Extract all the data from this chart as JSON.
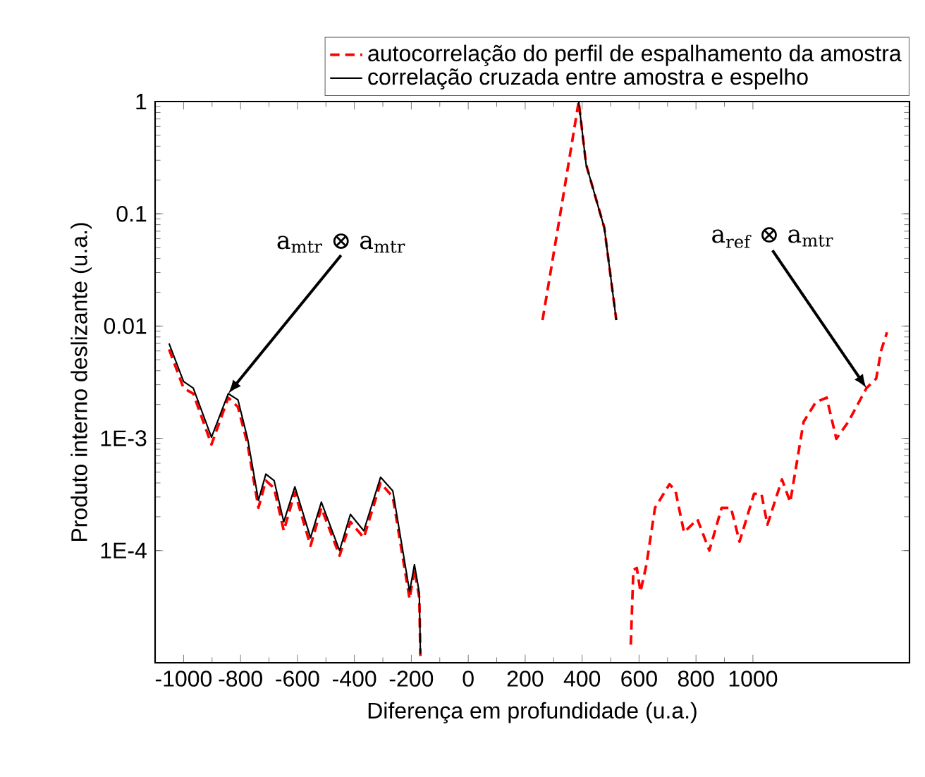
{
  "chart_data": {
    "type": "line",
    "xlabel": "Diferença em profundidade (u.a.)",
    "ylabel": "Produto interno deslizante (u.a.)",
    "log": "y",
    "xlim": [
      -1100,
      1550
    ],
    "xticks": [
      -1000,
      -800,
      -600,
      -400,
      -200,
      0,
      200,
      400,
      600,
      800,
      1000
    ],
    "ylim": [
      1e-05,
      1
    ],
    "yticks": [
      {
        "value": 0.0001,
        "label": "1E-4"
      },
      {
        "value": 0.001,
        "label": "1E-3"
      },
      0.01,
      0.1,
      1
    ],
    "legend": "top right",
    "series": [
      {
        "name": "autocorrelação do perfil de espalhamento da amostra",
        "color": "#ff0000",
        "line_style": "dashed",
        "x": [
          -1051,
          -1000,
          -966,
          -902,
          -843,
          -809,
          -775,
          -737,
          -711,
          -682,
          -648,
          -609,
          -554,
          -516,
          -452,
          -414,
          -367,
          -308,
          -265,
          -206,
          -189,
          -172,
          -168,
          0,
          261,
          325,
          388,
          414,
          478,
          520,
          545,
          571,
          580,
          592,
          605,
          626,
          656,
          707,
          728,
          758,
          805,
          847,
          890,
          923,
          953,
          1004,
          1030,
          1051,
          1102,
          1131,
          1178,
          1221,
          1259,
          1293,
          1335,
          1399,
          1433,
          1450,
          1471
        ],
        "values": [
          0.0062,
          0.0028,
          0.0025,
          0.00088,
          0.0023,
          0.0019,
          0.00088,
          0.00024,
          0.00042,
          0.00036,
          0.00015,
          0.00033,
          0.00011,
          0.00024,
          9e-05,
          0.00018,
          0.00013,
          0.0004,
          0.0003,
          3.7e-05,
          6.8e-05,
          3.8e-05,
          1.15e-05,
          null,
          0.0113,
          0.106,
          1,
          0.275,
          0.075,
          0.0113,
          null,
          1.45e-05,
          6.7e-05,
          7e-05,
          4.3e-05,
          7.5e-05,
          0.00024,
          0.00039,
          0.00034,
          0.000145,
          0.00019,
          0.0001,
          0.00024,
          0.00024,
          0.00012,
          0.00032,
          0.00032,
          0.00017,
          0.00043,
          0.00027,
          0.0014,
          0.0021,
          0.0023,
          0.00099,
          0.0014,
          0.0028,
          0.0034,
          0.006,
          0.0088
        ]
      },
      {
        "name": "correlação cruzada entre amostra e espelho",
        "color": "#000000",
        "line_style": "solid",
        "x": [
          -1051,
          -1000,
          -966,
          -902,
          -843,
          -809,
          -775,
          -737,
          -711,
          -682,
          -648,
          -609,
          -554,
          -516,
          -452,
          -414,
          -367,
          -308,
          -265,
          -206,
          -189,
          -172,
          -168,
          0,
          388,
          414,
          478,
          520
        ],
        "values": [
          0.007,
          0.0032,
          0.0028,
          0.00102,
          0.0025,
          0.0022,
          0.00099,
          0.00028,
          0.00048,
          0.00042,
          0.00018,
          0.00037,
          0.00013,
          0.00027,
          0.0001,
          0.00021,
          0.00015,
          0.00045,
          0.00034,
          4.3e-05,
          7.5e-05,
          4.2e-05,
          1.2e-05,
          null,
          1,
          0.275,
          0.075,
          0.0113
        ]
      }
    ],
    "annotations": [
      {
        "text": "a$_{mtr}$ ⊗ a$_{mtr}$",
        "x": -843,
        "y": 0.0025
      },
      {
        "text": "a$_{ref}$ ⊗ a$_{mtr}$",
        "x": 1399,
        "y": 0.0028
      }
    ]
  }
}
